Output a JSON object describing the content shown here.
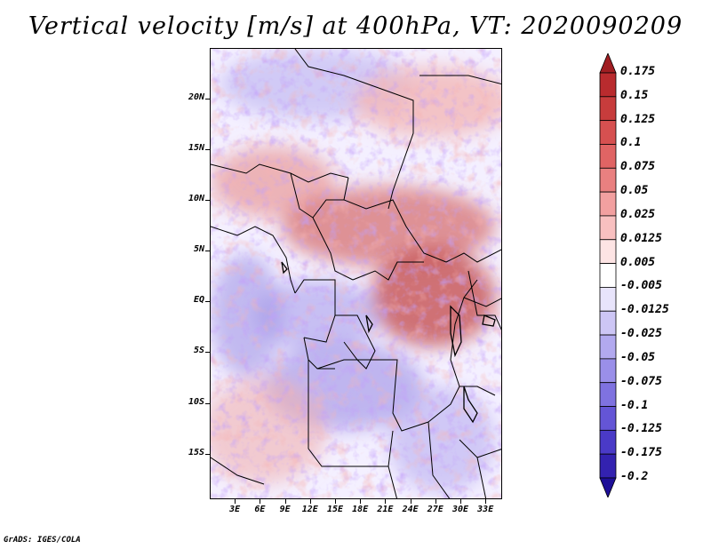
{
  "title": "Vertical velocity [m/s] at 400hPa, VT: 2020090209",
  "footer": "GrADS: IGES/COLA",
  "map": {
    "lat_labels": [
      "20N",
      "15N",
      "10N",
      "5N",
      "EQ",
      "5S",
      "10S",
      "15S"
    ],
    "lat_values": [
      20,
      15,
      10,
      5,
      0,
      -5,
      -10,
      -15
    ],
    "lon_labels": [
      "3E",
      "6E",
      "9E",
      "12E",
      "15E",
      "18E",
      "21E",
      "24E",
      "27E",
      "30E",
      "33E"
    ],
    "lon_values": [
      3,
      6,
      9,
      12,
      15,
      18,
      21,
      24,
      27,
      30,
      33
    ],
    "lat_range": [
      -19.5,
      25
    ],
    "lon_range": [
      0,
      35
    ],
    "variable": "vertical velocity",
    "units": "m/s",
    "level": "400hPa"
  },
  "colorbar": {
    "labels": [
      "0.175",
      "0.15",
      "0.125",
      "0.1",
      "0.075",
      "0.05",
      "0.025",
      "0.0125",
      "0.005",
      "-0.005",
      "-0.0125",
      "-0.025",
      "-0.05",
      "-0.075",
      "-0.1",
      "-0.125",
      "-0.175",
      "-0.2"
    ],
    "colors": [
      "#a01e22",
      "#b92b2e",
      "#c73c3c",
      "#d65050",
      "#e06464",
      "#e98080",
      "#f2a0a0",
      "#f8c0c0",
      "#fde4e4",
      "#ffffff",
      "#e8e4fb",
      "#cdc6f5",
      "#b2a9ef",
      "#9a8fe9",
      "#7f72e0",
      "#6455d6",
      "#4a3ac7",
      "#3322b0",
      "#1e0f98"
    ]
  }
}
